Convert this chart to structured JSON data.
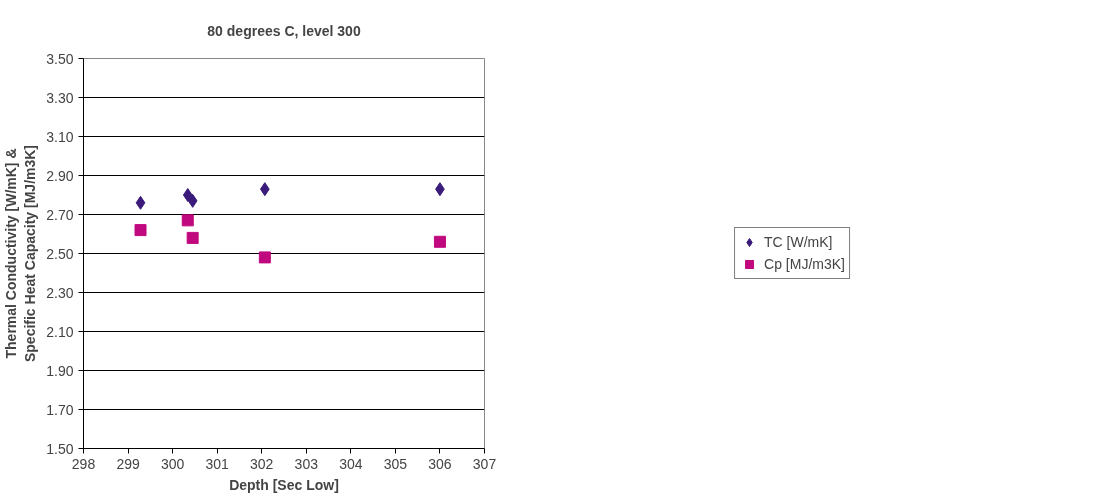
{
  "chart_data": {
    "type": "scatter",
    "title": "80 degrees C, level 300",
    "xlabel": "Depth [Sec Low]",
    "ylabel": "Thermal Conductivity [W/mK] &\nSpecific Heat Capacity [MJ/m3K]",
    "xlim": [
      298,
      307
    ],
    "xticks": [
      298,
      299,
      300,
      301,
      302,
      303,
      304,
      305,
      306,
      307
    ],
    "ylim": [
      1.5,
      3.5
    ],
    "yticks": [
      {
        "value": 1.5,
        "label": "1.50"
      },
      {
        "value": 1.7,
        "label": "1.70"
      },
      {
        "value": 1.9,
        "label": "1.90"
      },
      {
        "value": 2.1,
        "label": "2.10"
      },
      {
        "value": 2.3,
        "label": "2.30"
      },
      {
        "value": 2.5,
        "label": "2.50"
      },
      {
        "value": 2.7,
        "label": "2.70"
      },
      {
        "value": 2.9,
        "label": "2.90"
      },
      {
        "value": 3.1,
        "label": "3.10"
      },
      {
        "value": 3.3,
        "label": "3.30"
      },
      {
        "value": 3.5,
        "label": "3.50"
      }
    ],
    "grid": "y",
    "legend": "right",
    "x": [
      299.28,
      300.34,
      300.45,
      302.07,
      306.0
    ],
    "series": [
      {
        "name": "TC [W/mK]",
        "color": "#3a1a7a",
        "marker": "diamond",
        "values": [
          2.76,
          2.8,
          2.77,
          2.83,
          2.83
        ]
      },
      {
        "name": "Cp [MJ/m3K]",
        "color": "#c0087f",
        "marker": "square",
        "values": [
          2.62,
          2.67,
          2.58,
          2.48,
          2.56
        ]
      }
    ]
  }
}
